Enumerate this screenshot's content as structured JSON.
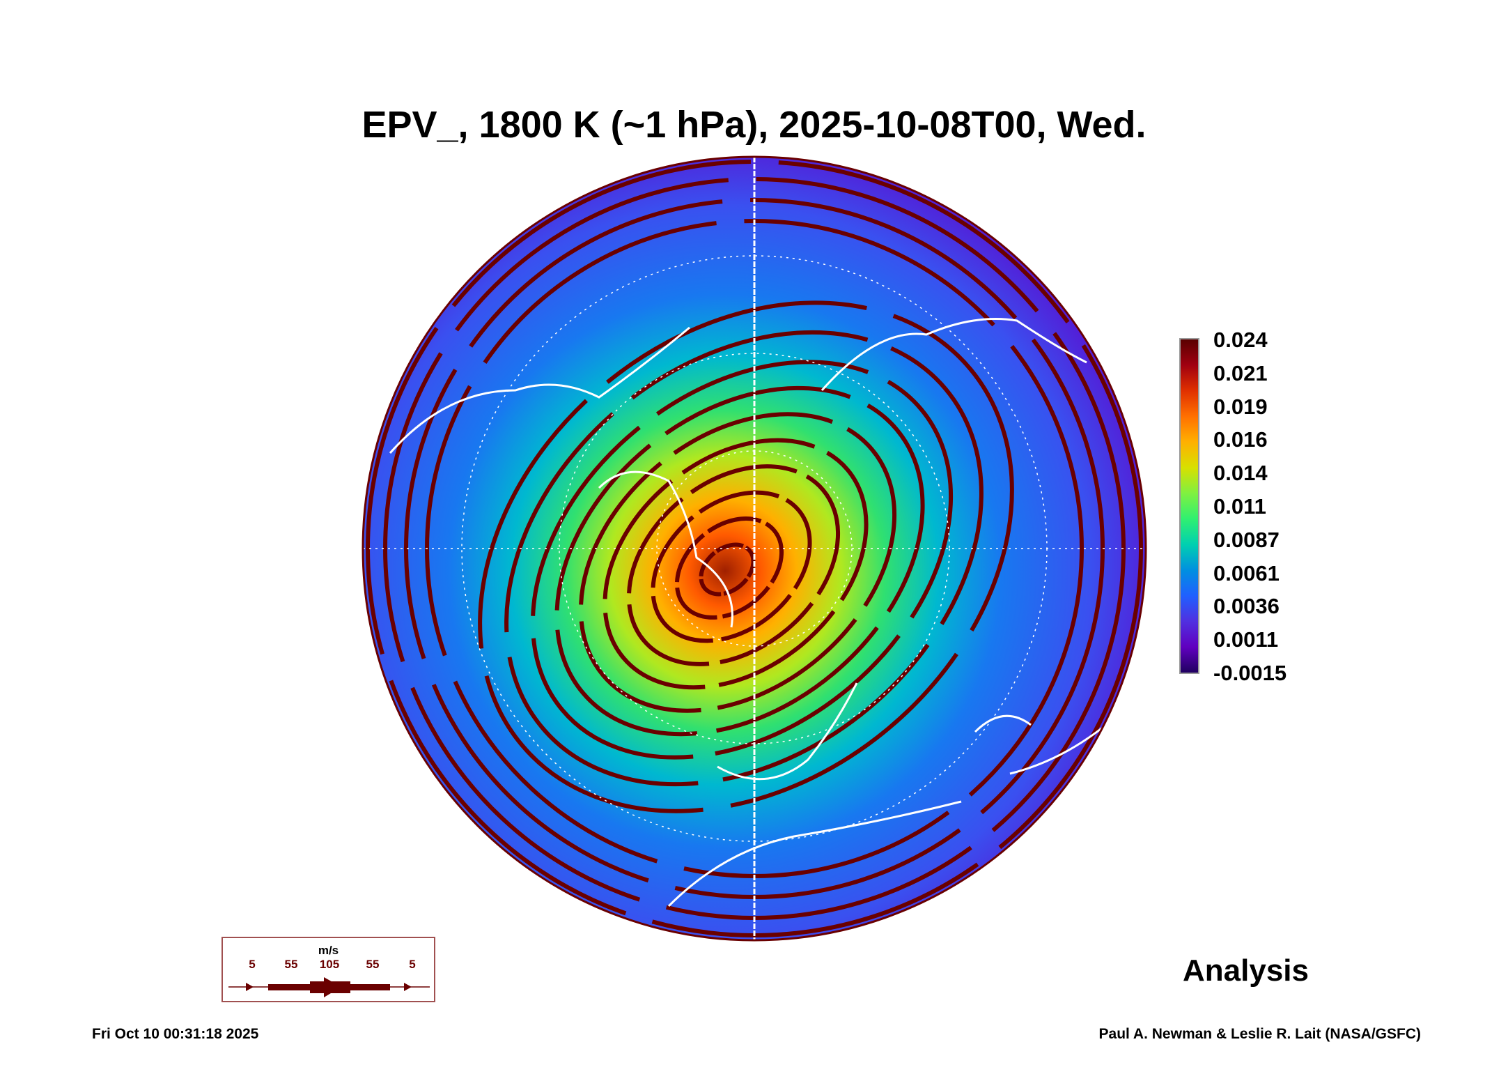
{
  "title": "EPV_, 1800 K (~1 hPa), 2025-10-08T00, Wed.",
  "chart_data": {
    "type": "heatmap",
    "title": "EPV_, 1800 K (~1 hPa), 2025-10-08T00, Wed.",
    "colorbar": {
      "ticks": [
        "0.024",
        "0.021",
        "0.019",
        "0.016",
        "0.014",
        "0.011",
        "0.0087",
        "0.0061",
        "0.0036",
        "0.0011",
        "-0.0015"
      ],
      "range": [
        -0.0015,
        0.024
      ]
    },
    "legend": {
      "unit": "m/s",
      "values": [
        "5",
        "55",
        "105",
        "55",
        "5"
      ]
    }
  },
  "colors": {
    "streamline": "#6a0000",
    "coastline": "#ffffff"
  },
  "label": "Analysis",
  "footer": {
    "left": "Fri Oct 10 00:31:18 2025",
    "right": "Paul A. Newman & Leslie R. Lait (NASA/GSFC)"
  }
}
